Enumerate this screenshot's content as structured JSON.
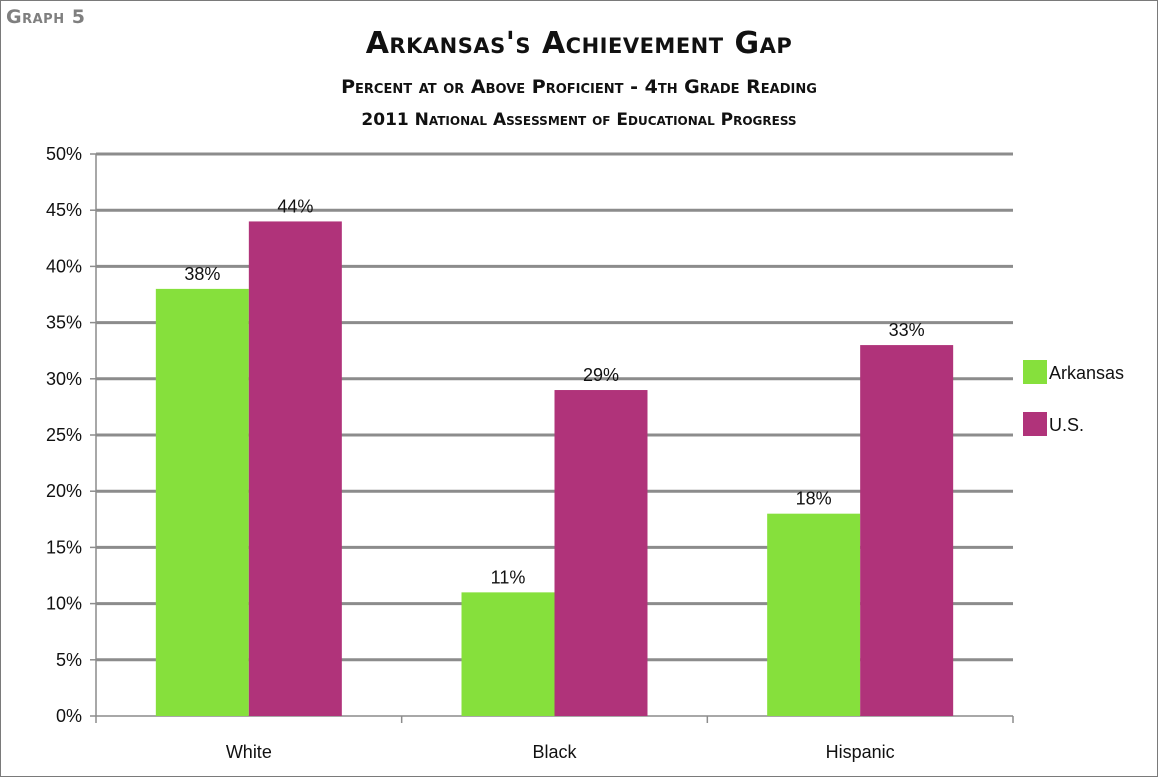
{
  "graph_label": "Graph 5",
  "chart_data": {
    "type": "bar",
    "title": "Arkansas's Achievement Gap",
    "subtitle": "Percent at or Above Proficient - 4th Grade Reading",
    "subtitle2": "2011 National Assessment of Educational Progress",
    "xlabel": "",
    "ylabel": "",
    "categories": [
      "White",
      "Black",
      "Hispanic"
    ],
    "series": [
      {
        "name": "Arkansas",
        "values": [
          38,
          11,
          18
        ],
        "labels": [
          "38%",
          "11%",
          "18%"
        ],
        "color": "#86e03c"
      },
      {
        "name": "U.S.",
        "values": [
          44,
          29,
          33
        ],
        "labels": [
          "44%",
          "29%",
          "33%"
        ],
        "color": "#b0337a"
      }
    ],
    "ylim": [
      0,
      50
    ],
    "yticks": [
      0,
      5,
      10,
      15,
      20,
      25,
      30,
      35,
      40,
      45,
      50
    ],
    "ytick_labels": [
      "0%",
      "5%",
      "10%",
      "15%",
      "20%",
      "25%",
      "30%",
      "35%",
      "40%",
      "45%",
      "50%"
    ],
    "grid": true,
    "legend_position": "right"
  }
}
